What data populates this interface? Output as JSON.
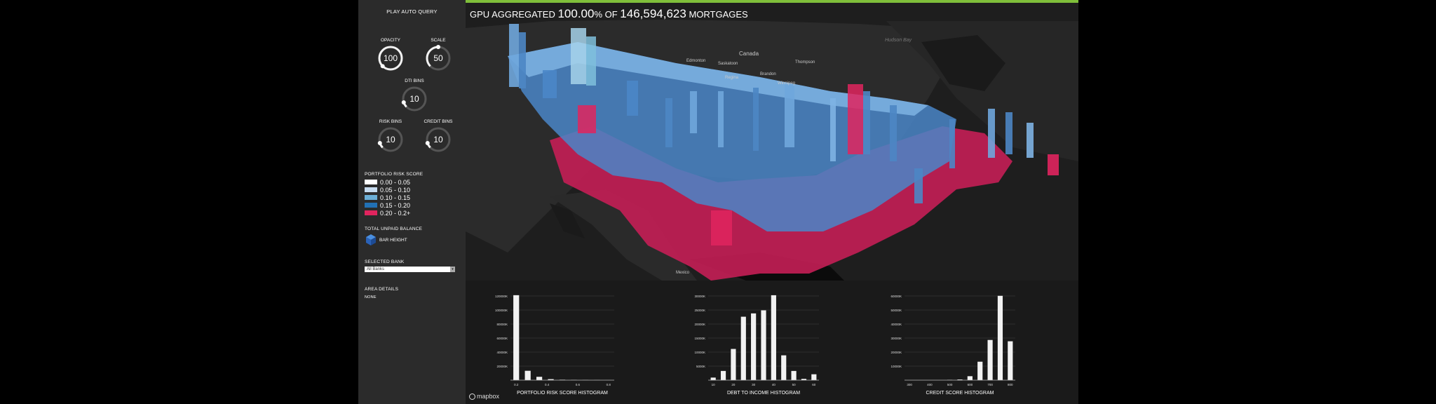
{
  "sidebar": {
    "play_label": "PLAY AUTO QUERY",
    "knobs": [
      {
        "label": "OPACITY",
        "value": "100",
        "fraction": 1.0
      },
      {
        "label": "SCALE",
        "value": "50",
        "fraction": 0.5
      },
      {
        "label": "DTI BINS",
        "value": "10",
        "fraction": 0.1
      },
      {
        "label": "RISK BINS",
        "value": "10",
        "fraction": 0.1
      },
      {
        "label": "CREDIT BINS",
        "value": "10",
        "fraction": 0.1
      }
    ],
    "risk_title": "PORTFOLIO RISK SCORE",
    "legend": [
      {
        "label": "0.00 - 0.05",
        "color": "#ffffff"
      },
      {
        "label": "0.05 - 0.10",
        "color": "#c6dbef"
      },
      {
        "label": "0.10 - 0.15",
        "color": "#6baed6"
      },
      {
        "label": "0.15 - 0.20",
        "color": "#2171b5"
      },
      {
        "label": "0.20 - 0.2+",
        "color": "#e0245e"
      }
    ],
    "balance_title": "TOTAL UNPAID BALANCE",
    "bar_height_label": "BAR HEIGHT",
    "bank_title": "SELECTED BANK",
    "bank_value": "All Banks",
    "area_title": "AREA DETAILS",
    "area_value": "NONE"
  },
  "map": {
    "headline_prefix": "GPU AGGREGATED ",
    "headline_percent": "100.00",
    "headline_percent_sign": "% OF ",
    "headline_count": "146,594,623",
    "headline_suffix": " MORTGAGES",
    "accent_color": "#7fbf3a",
    "labels": {
      "hudson_bay": "Hudson Bay",
      "canada": "Canada",
      "saskatoon": "Saskatoon",
      "edmonton": "Edmonton",
      "thompson": "Thompson",
      "regina": "Regina",
      "winnipeg": "Winnipeg",
      "brandon": "Brandon",
      "mexico": "Mexico"
    },
    "attribution": "mapbox"
  },
  "chart_data": [
    {
      "type": "bar",
      "title": "PORTFOLIO RISK SCORE HISTOGRAM",
      "x": [
        0.1,
        0.15,
        0.2,
        0.25,
        0.3,
        0.35,
        0.4,
        0.45,
        0.5
      ],
      "values": [
        127000,
        14000,
        5000,
        1500,
        600,
        300,
        200,
        100,
        50
      ],
      "x_ticks": [
        "0.2",
        "0.4",
        "0.6",
        "0.8"
      ],
      "y_ticks": [
        "20000K",
        "40000K",
        "60000K",
        "80000K",
        "100000K",
        "120000K"
      ],
      "ylim": [
        0,
        130000
      ],
      "grid": true,
      "color": "#f2f2f2"
    },
    {
      "type": "bar",
      "title": "DEBT TO INCOME HISTOGRAM",
      "x": [
        5,
        10,
        15,
        20,
        25,
        30,
        35,
        40,
        45,
        50,
        60
      ],
      "values": [
        1000,
        3600,
        12200,
        24800,
        26100,
        27300,
        33200,
        9700,
        3600,
        500,
        2300
      ],
      "x_ticks": [
        "10",
        "20",
        "30",
        "40",
        "50",
        "60"
      ],
      "y_ticks": [
        "5000K",
        "10000K",
        "15000K",
        "20000K",
        "25000K",
        "30000K"
      ],
      "ylim": [
        0,
        34000
      ],
      "grid": true,
      "color": "#f2f2f2"
    },
    {
      "type": "bar",
      "title": "CREDIT SCORE HISTOGRAM",
      "x": [
        300,
        350,
        400,
        450,
        500,
        550,
        600,
        650,
        700,
        750,
        800
      ],
      "values": [
        0,
        0,
        0,
        0,
        200,
        500,
        3000,
        14000,
        30500,
        64000,
        29500
      ],
      "x_ticks": [
        "300",
        "400",
        "500",
        "600",
        "700",
        "800"
      ],
      "y_ticks": [
        "10000K",
        "20000K",
        "30000K",
        "40000K",
        "50000K",
        "60000K"
      ],
      "ylim": [
        0,
        66000
      ],
      "grid": true,
      "color": "#f2f2f2"
    }
  ]
}
